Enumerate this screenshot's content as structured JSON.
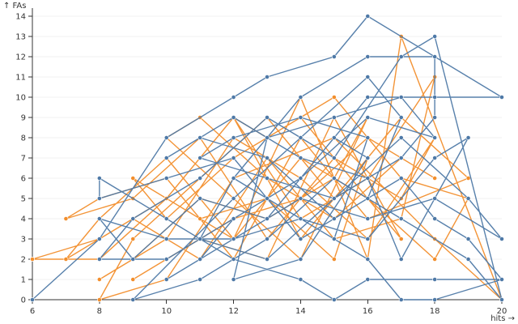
{
  "chart_data": {
    "type": "line",
    "title": "",
    "xlabel": "hits →",
    "ylabel": "↑ FAs",
    "xlim": [
      6,
      20
    ],
    "ylim": [
      0,
      14
    ],
    "x_ticks": [
      6,
      8,
      10,
      12,
      14,
      16,
      18,
      20
    ],
    "y_ticks": [
      0,
      1,
      2,
      3,
      4,
      5,
      6,
      7,
      8,
      9,
      10,
      11,
      12,
      13,
      14
    ],
    "grid": true,
    "legend": "none",
    "series": [
      {
        "color": "#f28e2c",
        "points": [
          [
            6,
            2
          ],
          [
            8,
            3
          ],
          [
            10,
            5
          ],
          [
            12,
            9
          ],
          [
            14,
            4
          ],
          [
            16,
            6
          ],
          [
            18,
            11
          ],
          [
            17,
            4
          ],
          [
            15,
            3
          ],
          [
            13,
            7
          ],
          [
            11,
            2
          ],
          [
            9,
            4
          ],
          [
            7,
            2
          ],
          [
            8,
            4
          ],
          [
            10,
            7
          ],
          [
            12,
            3
          ],
          [
            14,
            10
          ],
          [
            16,
            2
          ],
          [
            17,
            13
          ],
          [
            20,
            0
          ],
          [
            18,
            3
          ],
          [
            15,
            8
          ],
          [
            12,
            6
          ],
          [
            10,
            1
          ],
          [
            8,
            0
          ],
          [
            9,
            3
          ],
          [
            11,
            6
          ],
          [
            13,
            9
          ],
          [
            15,
            5
          ],
          [
            17,
            9
          ],
          [
            19,
            6
          ],
          [
            16,
            4
          ],
          [
            14,
            8
          ],
          [
            12,
            2
          ],
          [
            10,
            6
          ],
          [
            8,
            5
          ],
          [
            7,
            4
          ],
          [
            9,
            5
          ],
          [
            11,
            8
          ],
          [
            13,
            3
          ],
          [
            15,
            7
          ],
          [
            17,
            5
          ],
          [
            18,
            8
          ],
          [
            16,
            3
          ],
          [
            14,
            6
          ],
          [
            12,
            8
          ],
          [
            10,
            3
          ],
          [
            8,
            1
          ],
          [
            9,
            2
          ],
          [
            11,
            5
          ],
          [
            13,
            4
          ],
          [
            15,
            6
          ],
          [
            16,
            9
          ],
          [
            14,
            2
          ],
          [
            12,
            5
          ],
          [
            10,
            8
          ],
          [
            11,
            9
          ],
          [
            13,
            6
          ],
          [
            15,
            4
          ],
          [
            17,
            7
          ],
          [
            18,
            6
          ],
          [
            16,
            8
          ],
          [
            14,
            5
          ],
          [
            12,
            4
          ],
          [
            10,
            2
          ],
          [
            9,
            1
          ],
          [
            11,
            3
          ],
          [
            13,
            2
          ],
          [
            15,
            9
          ],
          [
            17,
            3
          ],
          [
            14,
            9
          ],
          [
            12,
            7
          ],
          [
            10,
            4
          ],
          [
            9,
            6
          ],
          [
            11,
            4
          ],
          [
            13,
            5
          ],
          [
            15,
            2
          ],
          [
            16,
            7
          ],
          [
            14,
            3
          ],
          [
            12,
            9
          ],
          [
            13,
            8
          ],
          [
            15,
            10
          ],
          [
            17,
            6
          ],
          [
            19,
            5
          ],
          [
            18,
            2
          ],
          [
            16,
            5
          ],
          [
            14,
            7
          ],
          [
            12,
            3
          ],
          [
            10,
            5
          ],
          [
            8,
            2
          ],
          [
            6,
            2
          ]
        ]
      },
      {
        "color": "#4e79a7",
        "points": [
          [
            6,
            0
          ],
          [
            8,
            3
          ],
          [
            10,
            8
          ],
          [
            12,
            10
          ],
          [
            13,
            11
          ],
          [
            15,
            12
          ],
          [
            16,
            14
          ],
          [
            20,
            10
          ],
          [
            18,
            10
          ],
          [
            16,
            10
          ],
          [
            14,
            6
          ],
          [
            12,
            4
          ],
          [
            10,
            2
          ],
          [
            8,
            2
          ],
          [
            9,
            4
          ],
          [
            11,
            6
          ],
          [
            13,
            9
          ],
          [
            15,
            7
          ],
          [
            17,
            12
          ],
          [
            18,
            13
          ],
          [
            20,
            0
          ],
          [
            19,
            2
          ],
          [
            17,
            4
          ],
          [
            15,
            6
          ],
          [
            13,
            3
          ],
          [
            11,
            1
          ],
          [
            9,
            0
          ],
          [
            12,
            5
          ],
          [
            14,
            8
          ],
          [
            16,
            11
          ],
          [
            17,
            9
          ],
          [
            16,
            5
          ],
          [
            14,
            3
          ],
          [
            12,
            7
          ],
          [
            10,
            6
          ],
          [
            8,
            5
          ],
          [
            8,
            6
          ],
          [
            10,
            4
          ],
          [
            12,
            2
          ],
          [
            14,
            1
          ],
          [
            15,
            0
          ],
          [
            16,
            1
          ],
          [
            18,
            1
          ],
          [
            20,
            1
          ],
          [
            19,
            3
          ],
          [
            18,
            4
          ],
          [
            17,
            6
          ],
          [
            15,
            4
          ],
          [
            13,
            7
          ],
          [
            11,
            8
          ],
          [
            10,
            7
          ],
          [
            12,
            9
          ],
          [
            14,
            7
          ],
          [
            16,
            6
          ],
          [
            17,
            2
          ],
          [
            19,
            8
          ],
          [
            18,
            7
          ],
          [
            16,
            3
          ],
          [
            14,
            4
          ],
          [
            12,
            6
          ],
          [
            13,
            5
          ],
          [
            15,
            3
          ],
          [
            16,
            8
          ],
          [
            14,
            9
          ],
          [
            12,
            8
          ],
          [
            11,
            7
          ],
          [
            13,
            6
          ],
          [
            15,
            5
          ],
          [
            17,
            7
          ],
          [
            18,
            9
          ],
          [
            18,
            12
          ],
          [
            16,
            12
          ],
          [
            14,
            10
          ],
          [
            12,
            6
          ],
          [
            11,
            3
          ],
          [
            13,
            2
          ],
          [
            15,
            5
          ],
          [
            17,
            8
          ],
          [
            19,
            5
          ],
          [
            20,
            3
          ],
          [
            18,
            5
          ],
          [
            16,
            4
          ],
          [
            14,
            5
          ],
          [
            12,
            3
          ],
          [
            10,
            3
          ],
          [
            8,
            4
          ],
          [
            9,
            2
          ],
          [
            11,
            5
          ],
          [
            13,
            4
          ],
          [
            15,
            8
          ],
          [
            16,
            7
          ],
          [
            14,
            2
          ],
          [
            12,
            1
          ],
          [
            13,
            8
          ],
          [
            15,
            9
          ],
          [
            17,
            10
          ],
          [
            18,
            8
          ],
          [
            16,
            9
          ],
          [
            14,
            6
          ],
          [
            13,
            5
          ],
          [
            12,
            4
          ],
          [
            11,
            2
          ],
          [
            10,
            1
          ],
          [
            12,
            3
          ],
          [
            14,
            4
          ],
          [
            16,
            2
          ],
          [
            17,
            0
          ],
          [
            18,
            0
          ],
          [
            20,
            1
          ]
        ]
      }
    ]
  }
}
